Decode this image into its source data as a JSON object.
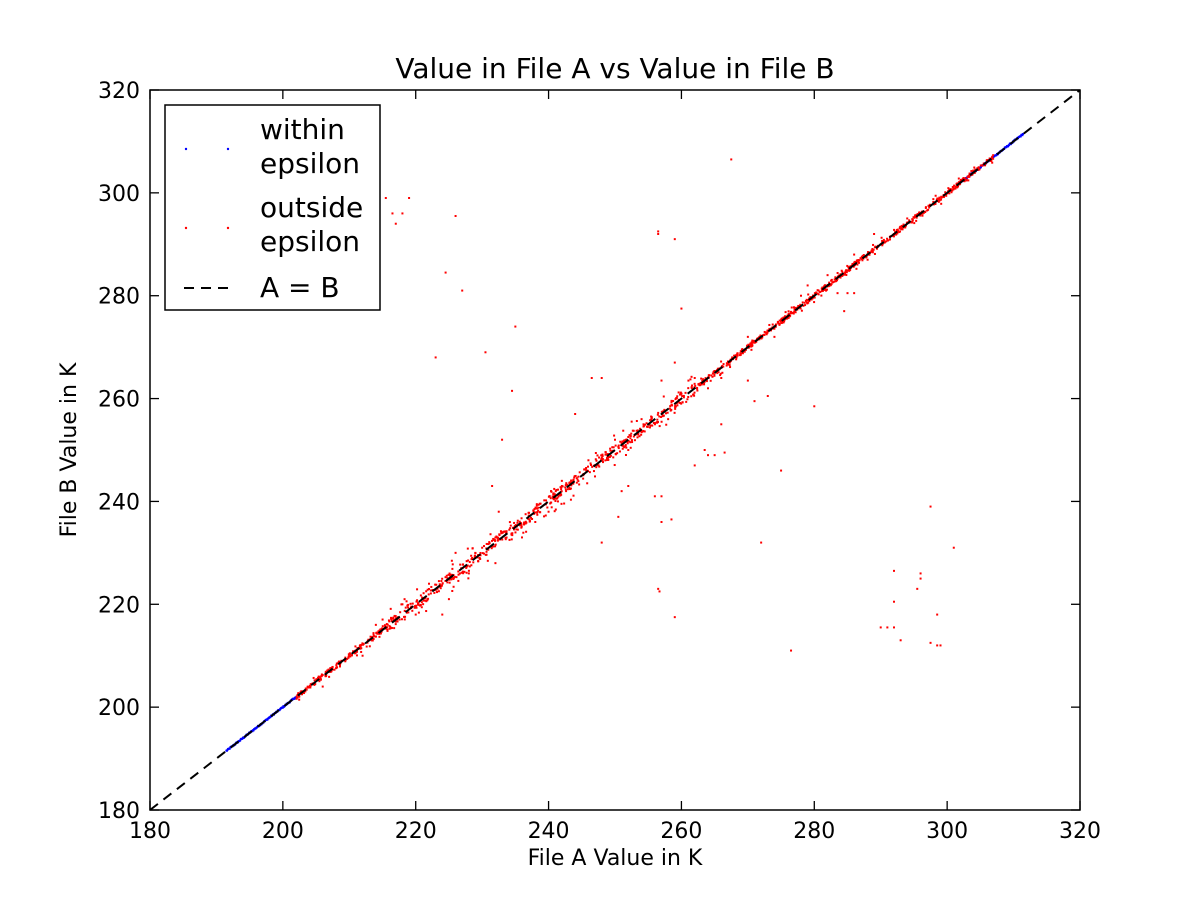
{
  "chart_data": {
    "type": "scatter",
    "title": "Value in File A vs Value in File B",
    "xlabel": "File A Value in K",
    "ylabel": "File B Value in K",
    "xlim": [
      180,
      320
    ],
    "ylim": [
      180,
      320
    ],
    "xticks": [
      180,
      200,
      220,
      240,
      260,
      280,
      300,
      320
    ],
    "yticks": [
      180,
      200,
      220,
      240,
      260,
      280,
      300,
      320
    ],
    "grid": false,
    "legend_position": "top-left",
    "legend": [
      {
        "label_line1": "within",
        "label_line2": "epsilon",
        "color": "#0000ff",
        "marker": "point"
      },
      {
        "label_line1": "outside",
        "label_line2": "epsilon",
        "color": "#ff0000",
        "marker": "point"
      },
      {
        "label": "A = B",
        "color": "#000000",
        "style": "dashed"
      }
    ],
    "series": [
      {
        "name": "within epsilon",
        "color": "#0000ff",
        "segments": [
          {
            "from": 191.5,
            "to": 202
          },
          {
            "from": 302,
            "to": 311.5
          }
        ]
      },
      {
        "name": "outside epsilon",
        "color": "#ff0000",
        "diagonal_range": [
          202,
          307
        ],
        "points": [
          [
            215.5,
            299
          ],
          [
            216.5,
            296
          ],
          [
            217,
            294
          ],
          [
            218,
            296
          ],
          [
            219,
            299
          ],
          [
            226,
            295.5
          ],
          [
            224.5,
            284.5
          ],
          [
            227,
            281
          ],
          [
            223,
            268
          ],
          [
            230.5,
            269
          ],
          [
            235,
            274
          ],
          [
            234.5,
            261.5
          ],
          [
            233,
            252
          ],
          [
            231.5,
            243
          ],
          [
            232.5,
            238
          ],
          [
            244,
            257
          ],
          [
            246.5,
            264
          ],
          [
            248,
            264
          ],
          [
            241,
            241
          ],
          [
            248,
            232
          ],
          [
            250.5,
            237
          ],
          [
            251,
            242
          ],
          [
            252,
            243
          ],
          [
            256.5,
            292.5
          ],
          [
            256.5,
            292
          ],
          [
            259,
            291
          ],
          [
            260,
            277.5
          ],
          [
            259,
            267
          ],
          [
            257,
            263.5
          ],
          [
            256,
            241
          ],
          [
            257,
            241
          ],
          [
            257,
            236
          ],
          [
            258.5,
            236.5
          ],
          [
            256.5,
            223
          ],
          [
            256.7,
            222.5
          ],
          [
            259,
            217.5
          ],
          [
            263.5,
            250
          ],
          [
            264,
            249
          ],
          [
            265,
            249
          ],
          [
            266.5,
            249.5
          ],
          [
            266,
            255
          ],
          [
            262,
            247
          ],
          [
            264,
            262
          ],
          [
            270,
            263.5
          ],
          [
            271,
            259.5
          ],
          [
            273,
            260.5
          ],
          [
            275,
            246
          ],
          [
            272,
            232
          ],
          [
            280,
            258.5
          ],
          [
            283.5,
            280.5
          ],
          [
            285,
            280.5
          ],
          [
            286,
            280.5
          ],
          [
            284.5,
            277
          ],
          [
            267.5,
            306.5
          ],
          [
            279,
            282
          ],
          [
            289,
            292
          ],
          [
            290,
            290
          ],
          [
            276.5,
            211
          ],
          [
            290,
            215.5
          ],
          [
            291,
            215.5
          ],
          [
            292,
            215.5
          ],
          [
            292,
            220.5
          ],
          [
            292,
            226.5
          ],
          [
            293,
            213
          ],
          [
            295.5,
            223
          ],
          [
            296,
            225
          ],
          [
            296,
            226
          ],
          [
            297.5,
            212.5
          ],
          [
            297.5,
            239
          ],
          [
            298.5,
            212
          ],
          [
            299,
            212
          ],
          [
            298.5,
            218
          ],
          [
            301,
            231
          ],
          [
            238,
            236
          ],
          [
            236,
            233
          ],
          [
            230,
            231
          ],
          [
            228,
            226
          ],
          [
            226,
            230
          ],
          [
            224,
            218
          ],
          [
            225,
            221
          ],
          [
            232,
            228
          ],
          [
            240,
            238
          ],
          [
            242,
            244
          ],
          [
            246,
            248
          ],
          [
            250,
            252
          ],
          [
            252,
            250
          ],
          [
            254,
            256
          ],
          [
            258,
            256
          ],
          [
            262,
            264
          ],
          [
            266,
            264
          ],
          [
            270,
            272
          ],
          [
            274,
            272
          ],
          [
            278,
            280
          ],
          [
            282,
            284
          ],
          [
            286,
            288
          ],
          [
            212,
            210
          ],
          [
            214,
            216
          ],
          [
            218,
            220
          ],
          [
            220,
            218
          ],
          [
            222,
            224
          ],
          [
            206,
            204
          ]
        ]
      },
      {
        "name": "A = B",
        "color": "#000000",
        "style": "dashed",
        "from": [
          180,
          180
        ],
        "to": [
          320,
          320
        ]
      }
    ]
  }
}
